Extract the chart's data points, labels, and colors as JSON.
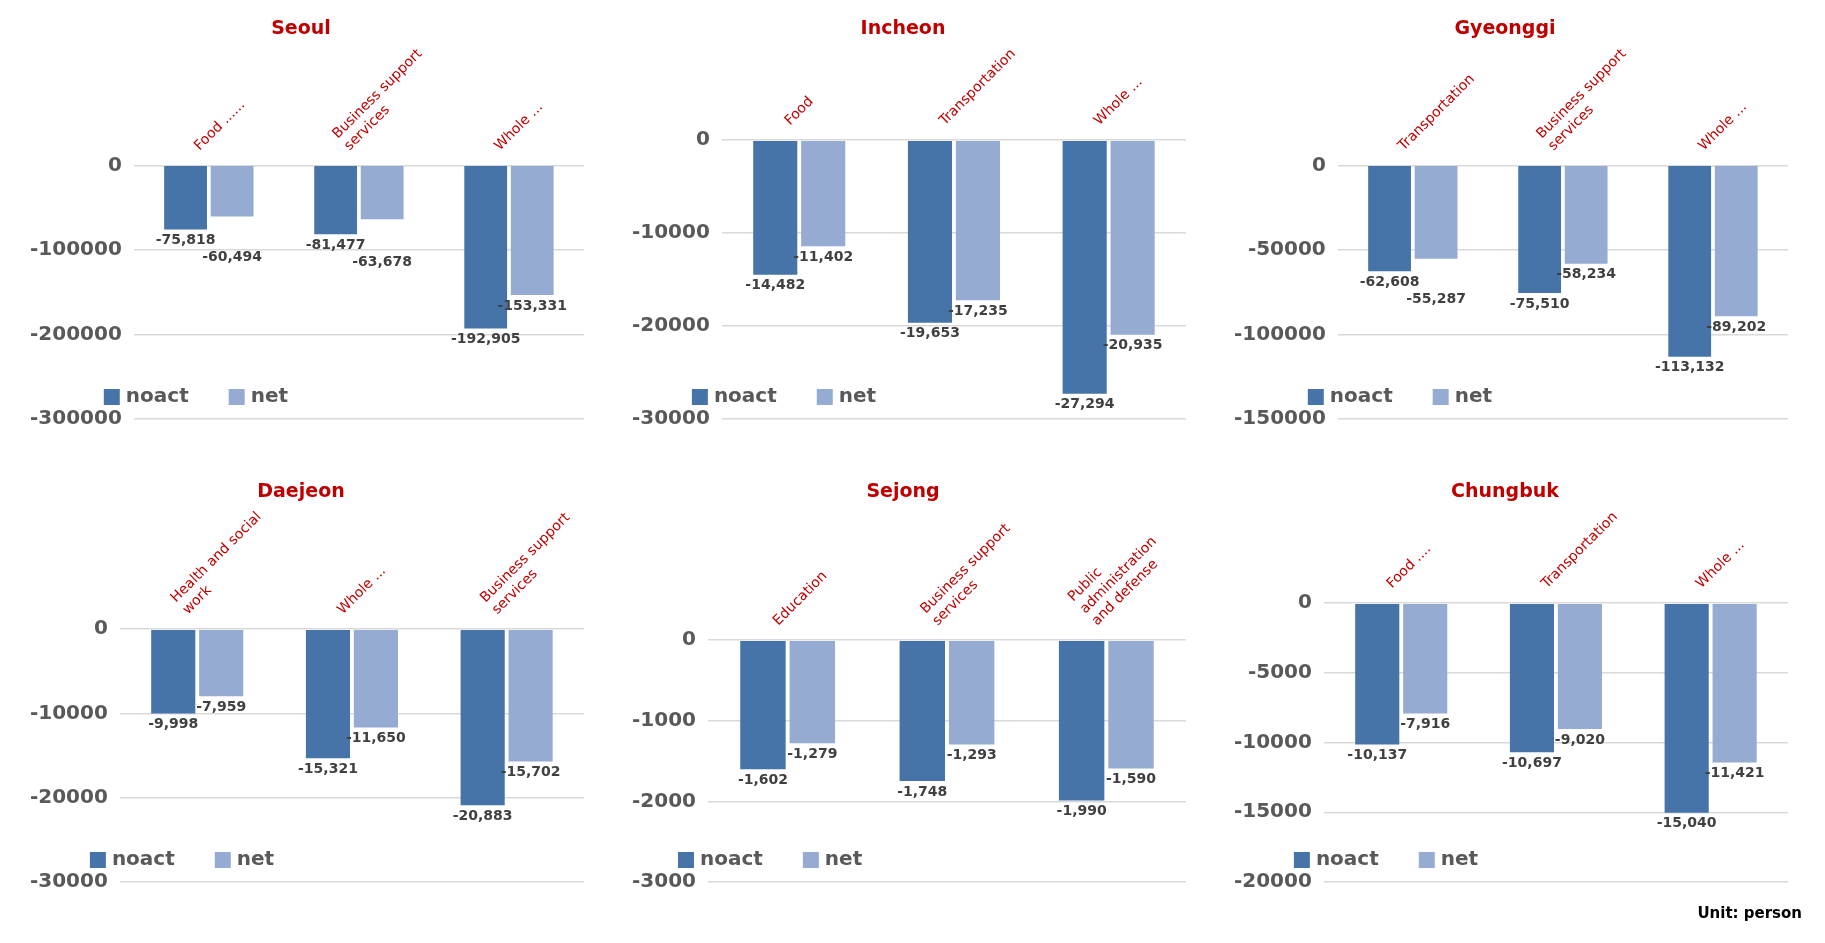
{
  "chart_data": [
    {
      "type": "bar",
      "title": "Seoul",
      "categories": [
        "Food ......",
        "Business support services",
        "Whole ..."
      ],
      "series": [
        {
          "name": "noact",
          "color": "#4674a9",
          "values": [
            -75818,
            -81477,
            -192905
          ],
          "value_labels": [
            "-75,818",
            "-81,477",
            "-192,905"
          ]
        },
        {
          "name": "net",
          "color": "#95abd2",
          "values": [
            -60494,
            -63678,
            -153331
          ],
          "value_labels": [
            "-60,494",
            "-63,678",
            "-153,331"
          ]
        }
      ],
      "ylim": [
        -300000,
        0
      ],
      "yticks": [
        -300000,
        -200000,
        -100000,
        0
      ],
      "grid": "y",
      "legend": "bottom left"
    },
    {
      "type": "bar",
      "title": "Incheon",
      "categories": [
        "Food",
        "Transportation",
        "Whole ..."
      ],
      "series": [
        {
          "name": "noact",
          "color": "#4674a9",
          "values": [
            -14482,
            -19653,
            -27294
          ],
          "value_labels": [
            "-14,482",
            "-19,653",
            "-27,294"
          ]
        },
        {
          "name": "net",
          "color": "#95abd2",
          "values": [
            -11402,
            -17235,
            -20935
          ],
          "value_labels": [
            "-11,402",
            "-17,235",
            "-20,935"
          ]
        }
      ],
      "ylim": [
        -30000,
        0
      ],
      "yticks": [
        -30000,
        -20000,
        -10000,
        0
      ],
      "grid": "y",
      "legend": "bottom left"
    },
    {
      "type": "bar",
      "title": "Gyeonggi",
      "categories": [
        "Transportation",
        "Business support services",
        "Whole ..."
      ],
      "series": [
        {
          "name": "noact",
          "color": "#4674a9",
          "values": [
            -62608,
            -75510,
            -113132
          ],
          "value_labels": [
            "-62,608",
            "-75,510",
            "-113,132"
          ]
        },
        {
          "name": "net",
          "color": "#95abd2",
          "values": [
            -55287,
            -58234,
            -89202
          ],
          "value_labels": [
            "-55,287",
            "-58,234",
            "-89,202"
          ]
        }
      ],
      "ylim": [
        -150000,
        0
      ],
      "yticks": [
        -150000,
        -100000,
        -50000,
        0
      ],
      "grid": "y",
      "legend": "bottom left"
    },
    {
      "type": "bar",
      "title": "Daejeon",
      "categories": [
        "Health and social work",
        "Whole ...",
        "Business support services"
      ],
      "series": [
        {
          "name": "noact",
          "color": "#4674a9",
          "values": [
            -9998,
            -15321,
            -20883
          ],
          "value_labels": [
            "-9,998",
            "-15,321",
            "-20,883"
          ]
        },
        {
          "name": "net",
          "color": "#95abd2",
          "values": [
            -7959,
            -11650,
            -15702
          ],
          "value_labels": [
            "-7,959",
            "-11,650",
            "-15,702"
          ]
        }
      ],
      "ylim": [
        -30000,
        0
      ],
      "yticks": [
        -30000,
        -20000,
        -10000,
        0
      ],
      "grid": "y",
      "legend": "bottom left"
    },
    {
      "type": "bar",
      "title": "Sejong",
      "categories": [
        "Education",
        "Business support services",
        "Public administration and defense"
      ],
      "series": [
        {
          "name": "noact",
          "color": "#4674a9",
          "values": [
            -1602,
            -1748,
            -1990
          ],
          "value_labels": [
            "-1,602",
            "-1,748",
            "-1,990"
          ]
        },
        {
          "name": "net",
          "color": "#95abd2",
          "values": [
            -1279,
            -1293,
            -1590
          ],
          "value_labels": [
            "-1,279",
            "-1,293",
            "-1,590"
          ]
        }
      ],
      "ylim": [
        -3000,
        0
      ],
      "yticks": [
        -3000,
        -2000,
        -1000,
        0
      ],
      "grid": "y",
      "legend": "bottom left"
    },
    {
      "type": "bar",
      "title": "Chungbuk",
      "categories": [
        "Food ....",
        "Transportation",
        "Whole ..."
      ],
      "series": [
        {
          "name": "noact",
          "color": "#4674a9",
          "values": [
            -10137,
            -10697,
            -15040
          ],
          "value_labels": [
            "-10,137",
            "-10,697",
            "-15,040"
          ]
        },
        {
          "name": "net",
          "color": "#95abd2",
          "values": [
            -7916,
            -9020,
            -11421
          ],
          "value_labels": [
            "-7,916",
            "-9,020",
            "-11,421"
          ]
        }
      ],
      "ylim": [
        -20000,
        0
      ],
      "yticks": [
        -20000,
        -15000,
        -10000,
        -5000,
        0
      ],
      "grid": "y",
      "legend": "bottom left",
      "annotations": [
        "Unit: person"
      ]
    }
  ]
}
